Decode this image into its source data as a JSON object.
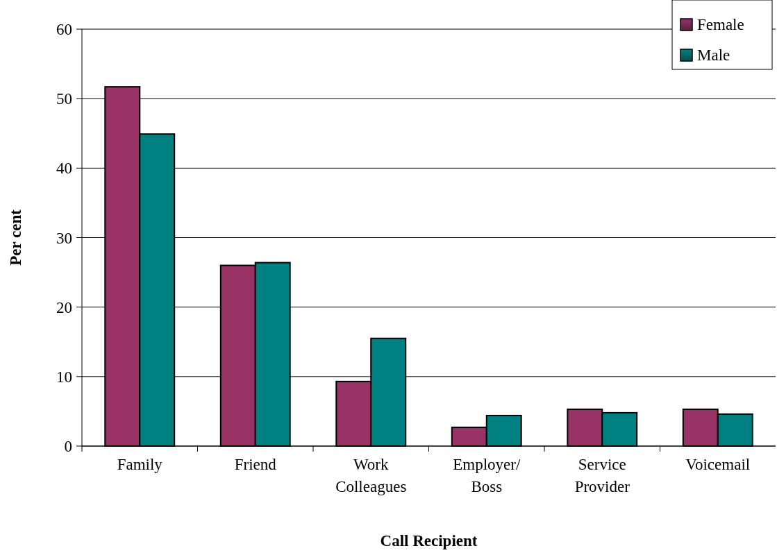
{
  "chart_data": {
    "type": "bar",
    "xlabel": "Call Recipient",
    "ylabel": "Per cent",
    "categories": [
      "Family",
      "Friend",
      "Work Colleagues",
      "Employer/ Boss",
      "Service Provider",
      "Voicemail"
    ],
    "series": [
      {
        "name": "Female",
        "color": "#993366",
        "values": [
          51.7,
          26.0,
          9.3,
          2.7,
          5.3,
          5.3
        ]
      },
      {
        "name": "Male",
        "color": "#008080",
        "values": [
          44.9,
          26.4,
          15.5,
          4.4,
          4.8,
          4.6
        ]
      }
    ],
    "ylim": [
      0,
      60
    ],
    "yticks": [
      0,
      10,
      20,
      30,
      40,
      50,
      60
    ],
    "grid": "y",
    "legend": "top right"
  }
}
